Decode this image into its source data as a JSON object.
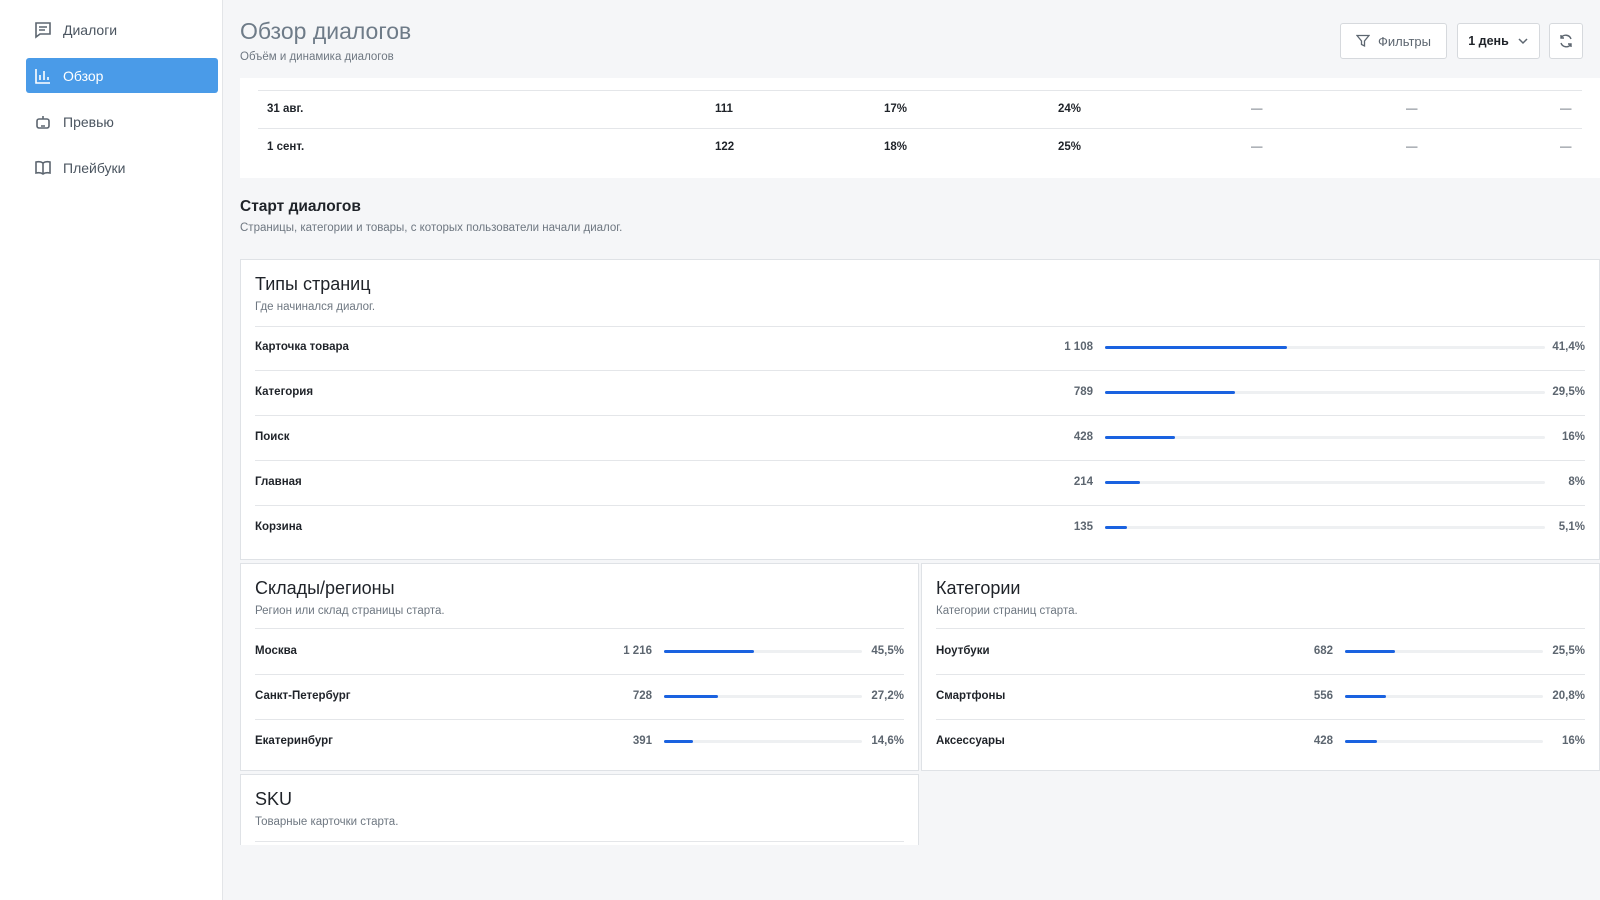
{
  "sidebar": {
    "items": [
      {
        "label": "Диалоги",
        "icon": "chat-icon"
      },
      {
        "label": "Обзор",
        "icon": "bar-chart-icon"
      },
      {
        "label": "Превью",
        "icon": "bot-icon"
      },
      {
        "label": "Плейбуки",
        "icon": "book-icon"
      }
    ],
    "active_index": 1
  },
  "header": {
    "title": "Обзор диалогов",
    "subtitle": "Объём и динамика диалогов",
    "filters_label": "Фильтры",
    "period_label": "1 день"
  },
  "table": {
    "rows": [
      [
        "31 авг.",
        "111",
        "17%",
        "24%",
        "—",
        "—",
        "—"
      ],
      [
        "1 сент.",
        "122",
        "18%",
        "25%",
        "—",
        "—",
        "—"
      ]
    ]
  },
  "section": {
    "title": "Старт диалогов",
    "subtitle": "Страницы, категории и товары, с которых пользователи начали диалог."
  },
  "page_types": {
    "title": "Типы страниц",
    "subtitle": "Где начинался диалог.",
    "items": [
      {
        "label": "Карточка товара",
        "count": "1 108",
        "pct": "41,4%",
        "share": 0.414
      },
      {
        "label": "Категория",
        "count": "789",
        "pct": "29,5%",
        "share": 0.295
      },
      {
        "label": "Поиск",
        "count": "428",
        "pct": "16%",
        "share": 0.16
      },
      {
        "label": "Главная",
        "count": "214",
        "pct": "8%",
        "share": 0.08
      },
      {
        "label": "Корзина",
        "count": "135",
        "pct": "5,1%",
        "share": 0.051
      }
    ]
  },
  "regions": {
    "title": "Склады/регионы",
    "subtitle": "Регион или склад страницы старта.",
    "items": [
      {
        "label": "Москва",
        "count": "1 216",
        "pct": "45,5%",
        "share": 0.455
      },
      {
        "label": "Санкт-Петербург",
        "count": "728",
        "pct": "27,2%",
        "share": 0.272
      },
      {
        "label": "Екатеринбург",
        "count": "391",
        "pct": "14,6%",
        "share": 0.146
      }
    ]
  },
  "categories": {
    "title": "Категории",
    "subtitle": "Категории страниц старта.",
    "items": [
      {
        "label": "Ноутбуки",
        "count": "682",
        "pct": "25,5%",
        "share": 0.255
      },
      {
        "label": "Смартфоны",
        "count": "556",
        "pct": "20,8%",
        "share": 0.208
      },
      {
        "label": "Аксессуары",
        "count": "428",
        "pct": "16%",
        "share": 0.16
      }
    ]
  },
  "sku": {
    "title": "SKU",
    "subtitle": "Товарные карточки старта."
  },
  "colors": {
    "accent": "#4a9be8",
    "bar_fill": "#1a62e0",
    "bar_track": "#eef0f2"
  }
}
